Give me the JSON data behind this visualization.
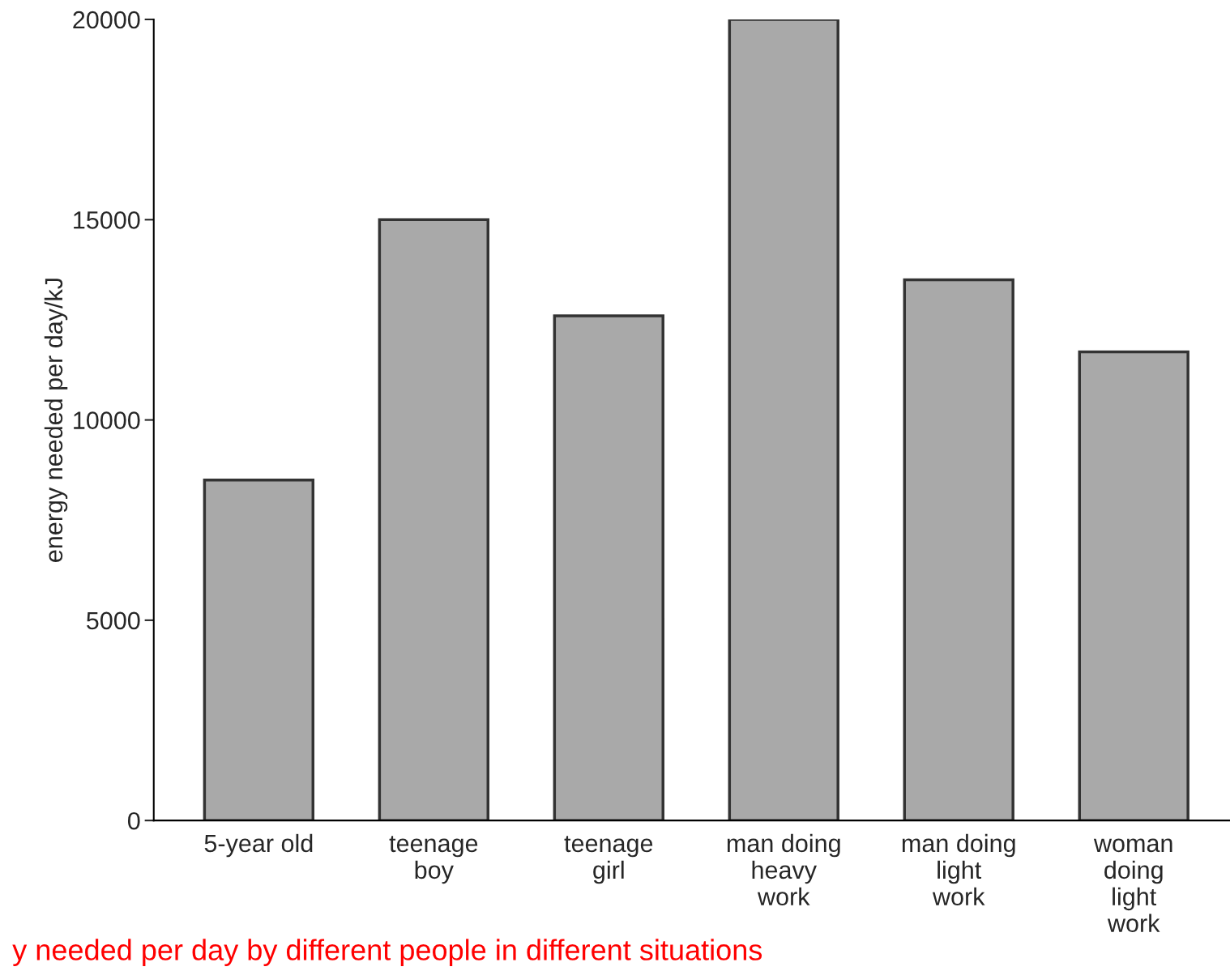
{
  "chart_data": {
    "type": "bar",
    "ylabel": "energy needed per day/kJ",
    "categories": [
      "5-year old",
      "teenage\nboy",
      "teenage\ngirl",
      "man doing\nheavy\nwork",
      "man doing\nlight\nwork",
      "woman\ndoing\nlight\nwork"
    ],
    "values": [
      8500,
      15000,
      12600,
      20000,
      13500,
      11700
    ],
    "color": "#a9a9a9",
    "ylim": [
      0,
      20000
    ],
    "yticks": [
      0,
      5000,
      10000,
      15000,
      20000
    ],
    "grid": false,
    "annotations": [
      "y needed per day by different people in different situations"
    ]
  }
}
